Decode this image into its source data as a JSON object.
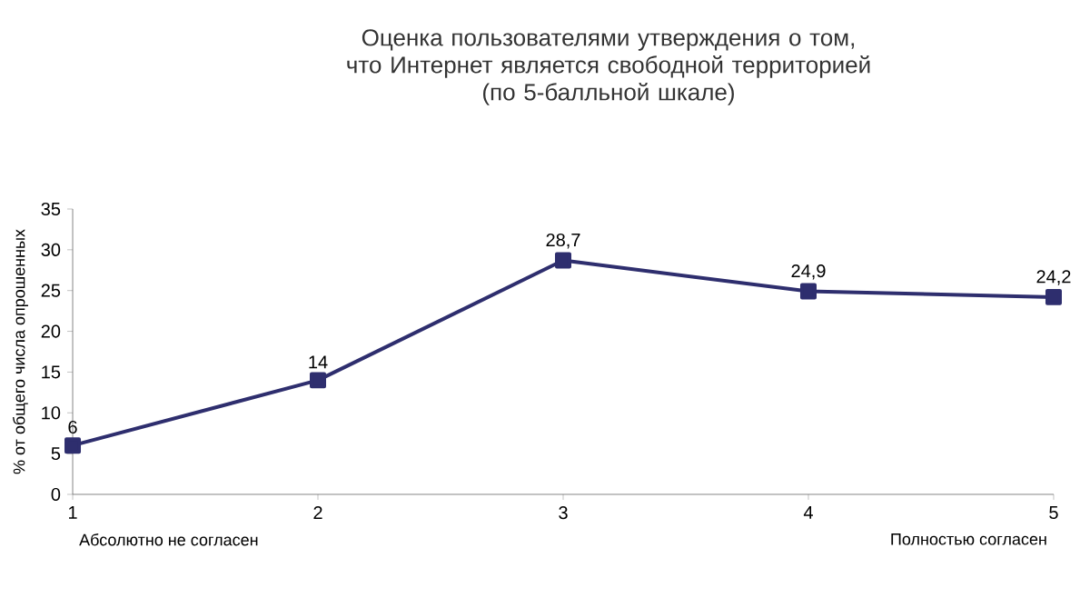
{
  "chart_data": {
    "type": "line",
    "title": "Оценка пользователями утверждения о том, что Интернет является свободной территорией",
    "subtitle": "(по 5-балльной шкале)",
    "ylabel": "% от общего числа опрошенных",
    "categories": [
      "1",
      "2",
      "3",
      "4",
      "5"
    ],
    "series": [
      {
        "color": "#2e2e6e",
        "values": [
          6,
          14,
          28.7,
          24.9,
          24.2
        ],
        "value_labels": [
          "6",
          "14",
          "28,7",
          "24,9",
          "24,2"
        ]
      }
    ],
    "ylim": [
      0,
      35
    ],
    "yticks": [
      0,
      5,
      10,
      15,
      20,
      25,
      30,
      35
    ],
    "marker": "square",
    "line_style": "solid",
    "annotations": [
      "Абсолютно не согласен",
      "Полностью согласен"
    ]
  }
}
